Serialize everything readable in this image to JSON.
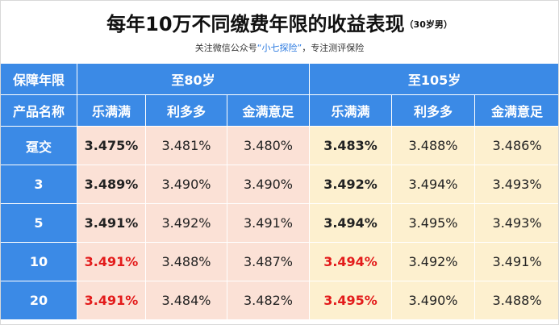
{
  "header": {
    "title": "每年10万不同缴费年限的收益表现",
    "title_suffix": "（30岁男）",
    "subtitle_pre": "关注微信公众号",
    "subtitle_highlight": "“小七探险”",
    "subtitle_post": "，专注测评保险",
    "highlight_color": "#2d7be0"
  },
  "table": {
    "row1_label": "保障年限",
    "group_80": "至80岁",
    "group_105": "至105岁",
    "row2_label": "产品名称",
    "products": [
      "乐满满",
      "利多多",
      "金满意足",
      "乐满满",
      "利多多",
      "金满意足"
    ],
    "rows": [
      {
        "term": "趸交",
        "v": [
          "3.475%",
          "3.481%",
          "3.480%",
          "3.483%",
          "3.488%",
          "3.486%"
        ]
      },
      {
        "term": "3",
        "v": [
          "3.489%",
          "3.490%",
          "3.490%",
          "3.492%",
          "3.494%",
          "3.493%"
        ]
      },
      {
        "term": "5",
        "v": [
          "3.491%",
          "3.492%",
          "3.491%",
          "3.494%",
          "3.495%",
          "3.493%"
        ]
      },
      {
        "term": "10",
        "v": [
          "3.491%",
          "3.488%",
          "3.487%",
          "3.494%",
          "3.492%",
          "3.491%"
        ]
      },
      {
        "term": "20",
        "v": [
          "3.491%",
          "3.484%",
          "3.482%",
          "3.495%",
          "3.490%",
          "3.488%"
        ]
      }
    ],
    "colors": {
      "header_blue": "#3b8ae6",
      "cell_pink": "#fbe1d6",
      "cell_cream": "#fdf0cf",
      "highlight_red": "#e31b1b"
    }
  }
}
